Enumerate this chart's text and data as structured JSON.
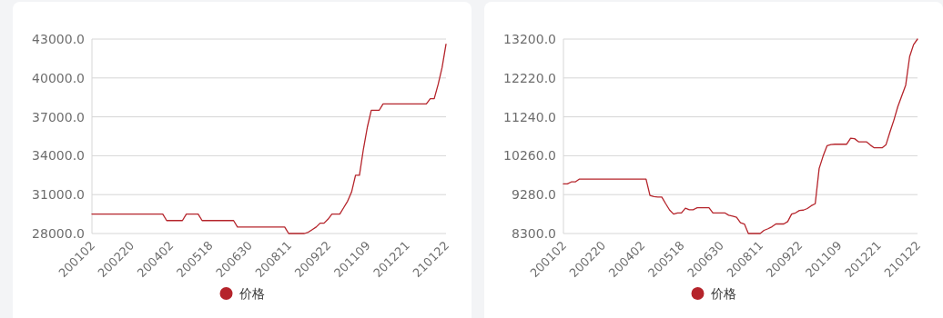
{
  "chart_data": [
    {
      "type": "line",
      "categories": [
        "200102",
        null,
        null,
        null,
        null,
        null,
        null,
        null,
        null,
        null,
        "200220",
        null,
        null,
        null,
        null,
        null,
        null,
        null,
        null,
        null,
        "200402",
        null,
        null,
        null,
        null,
        null,
        null,
        null,
        null,
        null,
        "200518",
        null,
        null,
        null,
        null,
        null,
        null,
        null,
        null,
        null,
        "200630",
        null,
        null,
        null,
        null,
        null,
        null,
        null,
        null,
        null,
        "200811",
        null,
        null,
        null,
        null,
        null,
        null,
        null,
        null,
        null,
        "200922",
        null,
        null,
        null,
        null,
        null,
        null,
        null,
        null,
        null,
        "201109",
        null,
        null,
        null,
        null,
        null,
        null,
        null,
        null,
        null,
        "201221",
        null,
        null,
        null,
        null,
        null,
        null,
        null,
        null,
        null,
        "210122"
      ],
      "series": [
        {
          "name": "价格",
          "color": "#b5242b",
          "values": [
            29500,
            29500,
            29500,
            29500,
            29500,
            29500,
            29500,
            29500,
            29500,
            29500,
            29500,
            29500,
            29500,
            29500,
            29500,
            29500,
            29500,
            29500,
            29500,
            29000,
            29000,
            29000,
            29000,
            29000,
            29500,
            29500,
            29500,
            29500,
            29000,
            29000,
            29000,
            29000,
            29000,
            29000,
            29000,
            29000,
            29000,
            28500,
            28500,
            28500,
            28500,
            28500,
            28500,
            28500,
            28500,
            28500,
            28500,
            28500,
            28500,
            28500,
            28000,
            28000,
            28000,
            28000,
            28000,
            28100,
            28300,
            28500,
            28800,
            28800,
            29100,
            29500,
            29500,
            29500,
            30000,
            30500,
            31200,
            32500,
            32500,
            34500,
            36200,
            37500,
            37500,
            37500,
            38000,
            38000,
            38000,
            38000,
            38000,
            38000,
            38000,
            38000,
            38000,
            38000,
            38000,
            38000,
            38400,
            38400,
            39500,
            40800,
            42600
          ]
        }
      ],
      "ylim": [
        28000,
        43000
      ],
      "yticks": [
        {
          "value": 28000,
          "label": "28000.0"
        },
        {
          "value": 31000,
          "label": "31000.0"
        },
        {
          "value": 34000,
          "label": "34000.0"
        },
        {
          "value": 37000,
          "label": "37000.0"
        },
        {
          "value": 40000,
          "label": "40000.0"
        },
        {
          "value": 43000,
          "label": "43000.0"
        }
      ],
      "grid": "y",
      "legend": "bottom"
    },
    {
      "type": "line",
      "categories": [
        "200102",
        null,
        null,
        null,
        null,
        null,
        null,
        null,
        null,
        null,
        "200220",
        null,
        null,
        null,
        null,
        null,
        null,
        null,
        null,
        null,
        "200402",
        null,
        null,
        null,
        null,
        null,
        null,
        null,
        null,
        null,
        "200518",
        null,
        null,
        null,
        null,
        null,
        null,
        null,
        null,
        null,
        "200630",
        null,
        null,
        null,
        null,
        null,
        null,
        null,
        null,
        null,
        "200811",
        null,
        null,
        null,
        null,
        null,
        null,
        null,
        null,
        null,
        "200922",
        null,
        null,
        null,
        null,
        null,
        null,
        null,
        null,
        null,
        "201109",
        null,
        null,
        null,
        null,
        null,
        null,
        null,
        null,
        null,
        "201221",
        null,
        null,
        null,
        null,
        null,
        null,
        null,
        null,
        null,
        "210122"
      ],
      "series": [
        {
          "name": "价格",
          "color": "#b5242b",
          "values": [
            9550,
            9550,
            9600,
            9600,
            9670,
            9670,
            9670,
            9670,
            9670,
            9670,
            9670,
            9670,
            9670,
            9670,
            9670,
            9670,
            9670,
            9670,
            9670,
            9670,
            9670,
            9670,
            9260,
            9230,
            9220,
            9220,
            9050,
            8890,
            8790,
            8820,
            8820,
            8940,
            8900,
            8900,
            8950,
            8950,
            8950,
            8950,
            8820,
            8820,
            8820,
            8820,
            8760,
            8740,
            8710,
            8570,
            8540,
            8300,
            8300,
            8300,
            8300,
            8380,
            8420,
            8470,
            8540,
            8540,
            8540,
            8600,
            8790,
            8820,
            8880,
            8890,
            8930,
            9000,
            9050,
            9940,
            10250,
            10510,
            10540,
            10550,
            10550,
            10550,
            10550,
            10700,
            10690,
            10610,
            10610,
            10610,
            10530,
            10460,
            10460,
            10460,
            10540,
            10860,
            11160,
            11500,
            11770,
            12040,
            12760,
            13060,
            13200
          ]
        }
      ],
      "ylim": [
        8300,
        13200
      ],
      "yticks": [
        {
          "value": 8300,
          "label": "8300.0"
        },
        {
          "value": 9280,
          "label": "9280.0"
        },
        {
          "value": 10260,
          "label": "10260.0"
        },
        {
          "value": 11240,
          "label": "11240.0"
        },
        {
          "value": 12220,
          "label": "12220.0"
        },
        {
          "value": 13200,
          "label": "13200.0"
        }
      ],
      "grid": "y",
      "legend": "bottom"
    }
  ]
}
